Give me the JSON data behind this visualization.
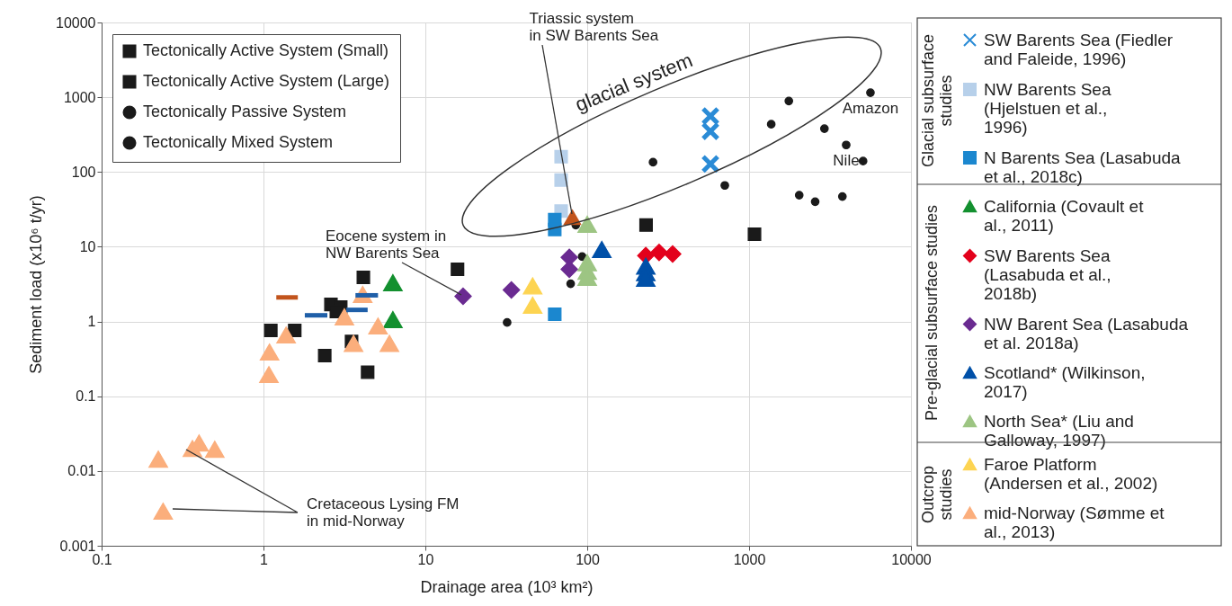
{
  "chart_data": {
    "type": "scatter",
    "xlabel": "Drainage area (10³ km²)",
    "ylabel": "Sediment load (x10⁶ t/yr)",
    "log": "xy",
    "grid": true,
    "legend": "right",
    "xlim": [
      0.1,
      10000
    ],
    "xticks": [
      0.1,
      1,
      10,
      100,
      1000,
      10000
    ],
    "ylim": [
      0.001,
      10000
    ],
    "yticks": [
      0.001,
      0.01,
      0.1,
      1,
      10,
      100,
      1000,
      10000
    ],
    "annotations": [
      "glacial system",
      {
        "text": "Triassic system in SW Barents Sea",
        "x": 81,
        "y": 25
      },
      {
        "text": "Eocene system in NW Barents Sea",
        "x": 17.1,
        "y": 2.17
      },
      {
        "text": "Cretaceous Lysing FM in mid-Norway",
        "x": 0.364,
        "y": 0.02
      },
      {
        "text": "Amazon",
        "x": 5620,
        "y": 1150
      },
      {
        "text": "Nile",
        "x": 3980,
        "y": 230
      },
      "Glacial subsurface studies",
      "Pre-glacial subsurface studies",
      "Outcrop studies"
    ],
    "series": [
      {
        "name": "Tectonically Active System (Small)",
        "marker": "square",
        "color": "#1a1a1a",
        "x": [
          1.11,
          1.56,
          2.61,
          3.0,
          2.82,
          4.14,
          3.5,
          2.39,
          4.4,
          15.8
        ],
        "values": [
          0.76,
          0.76,
          1.69,
          1.56,
          1.36,
          3.9,
          0.54,
          0.35,
          0.21,
          5.0
        ]
      },
      {
        "name": "Tectonically Active System (Large)",
        "marker": "square",
        "color": "#1a1a1a",
        "x": [
          231,
          1080
        ],
        "values": [
          19.5,
          14.7
        ]
      },
      {
        "name": "Tectonically Passive System",
        "marker": "circle",
        "color": "#1a1a1a",
        "x": [
          85,
          93,
          79,
          32,
          708,
          2040,
          2560,
          3770,
          2920,
          3980,
          5620
        ],
        "values": [
          19.5,
          7.4,
          3.2,
          0.97,
          66,
          49,
          40,
          47,
          380,
          230,
          1150
        ]
      },
      {
        "name": "Tectonically Mixed System",
        "marker": "circle",
        "color": "#1a1a1a",
        "x": [
          255,
          1370,
          1760,
          5060
        ],
        "values": [
          135,
          435,
          890,
          140
        ]
      },
      {
        "name": "SW Barents Sea (Fiedler and Faleide, 1996)",
        "marker": "cross",
        "color": "#2a8bd6",
        "x": [
          577,
          577,
          577
        ],
        "values": [
          560,
          350,
          128
        ]
      },
      {
        "name": "NW Barents Sea (Hjelstuen et al., 1996)",
        "marker": "square",
        "color": "#b7d0ea",
        "x": [
          69,
          69,
          69
        ],
        "values": [
          160,
          78,
          30
        ]
      },
      {
        "name": "N Barents Sea (Lasabuda et al., 2018c)",
        "marker": "square",
        "color": "#1b87cf",
        "x": [
          63,
          63,
          63
        ],
        "values": [
          23,
          17,
          1.25
        ]
      },
      {
        "name": "California (Covault et al., 2011)",
        "marker": "triangle",
        "color": "#13902f",
        "x": [
          6.3,
          6.3
        ],
        "values": [
          3.3,
          1.06
        ]
      },
      {
        "name": "SW Barents Sea (Lasabuda et al., 2018b)",
        "marker": "diamond",
        "color": "#e3001b",
        "x": [
          230,
          278,
          337
        ],
        "values": [
          7.6,
          8.4,
          8.0
        ]
      },
      {
        "name": "NW Barent Sea (Lasabuda et al. 2018a)",
        "marker": "diamond",
        "color": "#6a2b91",
        "x": [
          17.1,
          34,
          77.5,
          77.5
        ],
        "values": [
          2.17,
          2.64,
          7.2,
          5.0
        ]
      },
      {
        "name": "Scotland* (Wilkinson, 2017)",
        "marker": "triangle",
        "color": "#0050a8",
        "x": [
          123,
          230,
          230,
          230
        ],
        "values": [
          9.2,
          5.5,
          4.5,
          3.8
        ]
      },
      {
        "name": "North Sea* (Liu and Galloway, 1997)",
        "marker": "triangle",
        "color": "#9dc583",
        "x": [
          100,
          100,
          100,
          100
        ],
        "values": [
          20,
          6.1,
          4.7,
          3.9
        ]
      },
      {
        "name": "Faroe Platform (Andersen et al., 2002)",
        "marker": "triangle",
        "color": "#fdd452",
        "x": [
          46,
          46
        ],
        "values": [
          3.0,
          1.65
        ]
      },
      {
        "name": "mid-Norway (Sømme et al., 2013)",
        "marker": "triangle",
        "color": "#fbae7c",
        "x": [
          1.09,
          1.08,
          1.38,
          3.16,
          3.6,
          4.1,
          5.1,
          6.0,
          0.224,
          0.364,
          0.4,
          0.5,
          0.24
        ],
        "values": [
          0.39,
          0.195,
          0.66,
          1.15,
          0.51,
          2.3,
          0.87,
          0.51,
          0.0144,
          0.02,
          0.0237,
          0.0195,
          0.0029
        ]
      },
      {
        "marker": "triangle",
        "color": "#c2541c",
        "x": [
          81
        ],
        "values": [
          25
        ]
      },
      {
        "type": "line",
        "color": "#c2541c",
        "x": [
          1.2,
          1.63
        ],
        "values": [
          2.1,
          2.1
        ]
      },
      {
        "type": "line",
        "color": "#1f5fa8",
        "x": [
          1.8,
          2.48
        ],
        "values": [
          1.21,
          1.21
        ]
      },
      {
        "type": "line",
        "color": "#1f5fa8",
        "x": [
          3.25,
          4.4
        ],
        "values": [
          1.43,
          1.43
        ]
      },
      {
        "type": "line",
        "color": "#1f5fa8",
        "x": [
          3.7,
          5.1
        ],
        "values": [
          2.24,
          2.24
        ]
      }
    ]
  }
}
